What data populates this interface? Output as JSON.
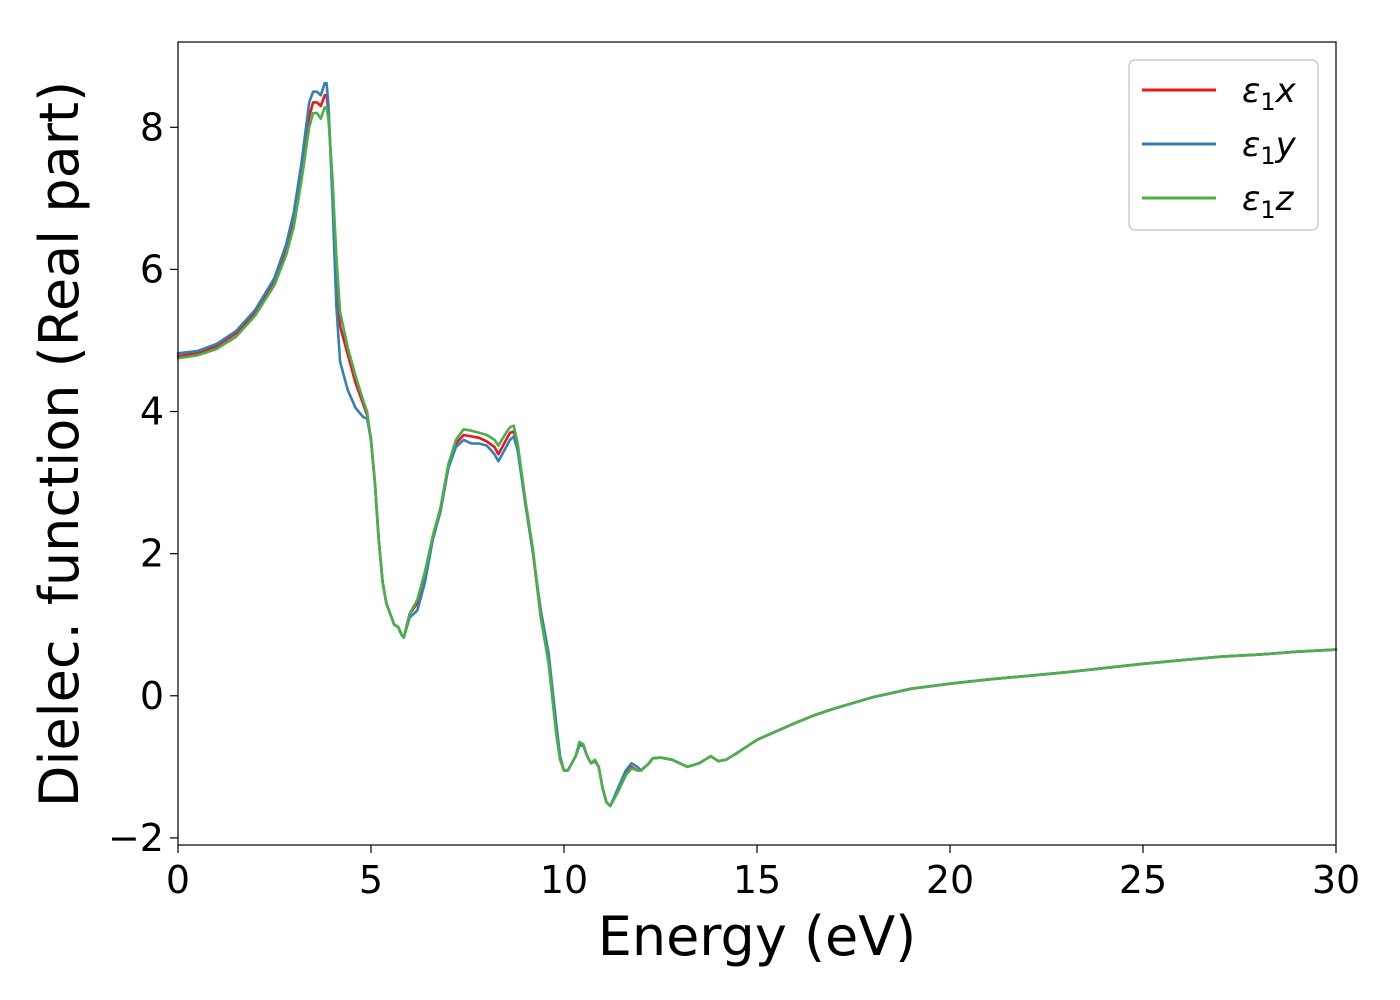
{
  "chart_data": {
    "type": "line",
    "title": "",
    "xlabel": "Energy (eV)",
    "ylabel": "Dielec. function (Real part)",
    "xlim": [
      0,
      30
    ],
    "ylim": [
      -2.1,
      9.2
    ],
    "xticks": [
      0,
      5,
      10,
      15,
      20,
      25,
      30
    ],
    "xtick_labels": [
      "0",
      "5",
      "10",
      "15",
      "20",
      "25",
      "30"
    ],
    "yticks": [
      -2,
      0,
      2,
      4,
      6,
      8
    ],
    "ytick_labels": [
      "−2",
      "0",
      "2",
      "4",
      "6",
      "8"
    ],
    "grid": false,
    "legend_position": "top-right",
    "series": [
      {
        "name": "ε1x",
        "legend_base": "ε",
        "legend_sub": "1",
        "legend_tail": "x",
        "color": "#e41a1c",
        "points": [
          [
            0,
            4.78
          ],
          [
            0.5,
            4.82
          ],
          [
            1.0,
            4.92
          ],
          [
            1.5,
            5.1
          ],
          [
            2.0,
            5.4
          ],
          [
            2.5,
            5.85
          ],
          [
            2.8,
            6.3
          ],
          [
            3.0,
            6.75
          ],
          [
            3.2,
            7.4
          ],
          [
            3.4,
            8.15
          ],
          [
            3.5,
            8.35
          ],
          [
            3.6,
            8.35
          ],
          [
            3.7,
            8.3
          ],
          [
            3.8,
            8.45
          ],
          [
            3.85,
            8.45
          ],
          [
            3.9,
            8.2
          ],
          [
            4.0,
            7.2
          ],
          [
            4.1,
            6.0
          ],
          [
            4.2,
            5.2
          ],
          [
            4.4,
            4.8
          ],
          [
            4.6,
            4.4
          ],
          [
            4.8,
            4.1
          ],
          [
            4.9,
            3.95
          ],
          [
            5.0,
            3.6
          ],
          [
            5.1,
            3.0
          ],
          [
            5.2,
            2.2
          ],
          [
            5.3,
            1.6
          ],
          [
            5.4,
            1.3
          ],
          [
            5.6,
            1.0
          ],
          [
            5.7,
            0.97
          ],
          [
            5.8,
            0.85
          ],
          [
            5.85,
            0.82
          ],
          [
            6.0,
            1.15
          ],
          [
            6.2,
            1.3
          ],
          [
            6.4,
            1.7
          ],
          [
            6.6,
            2.2
          ],
          [
            6.8,
            2.6
          ],
          [
            7.0,
            3.2
          ],
          [
            7.2,
            3.55
          ],
          [
            7.4,
            3.67
          ],
          [
            7.6,
            3.65
          ],
          [
            7.8,
            3.63
          ],
          [
            8.0,
            3.58
          ],
          [
            8.2,
            3.5
          ],
          [
            8.3,
            3.4
          ],
          [
            8.5,
            3.6
          ],
          [
            8.6,
            3.7
          ],
          [
            8.7,
            3.72
          ],
          [
            8.8,
            3.5
          ],
          [
            9.0,
            2.7
          ],
          [
            9.2,
            2.0
          ],
          [
            9.4,
            1.1
          ],
          [
            9.6,
            0.5
          ],
          [
            9.8,
            -0.5
          ],
          [
            9.9,
            -0.9
          ],
          [
            10.0,
            -1.05
          ],
          [
            10.1,
            -1.05
          ],
          [
            10.3,
            -0.85
          ],
          [
            10.4,
            -0.7
          ],
          [
            10.5,
            -0.7
          ],
          [
            10.6,
            -0.85
          ],
          [
            10.7,
            -0.95
          ],
          [
            10.8,
            -0.92
          ],
          [
            10.9,
            -1.0
          ],
          [
            11.0,
            -1.3
          ],
          [
            11.1,
            -1.5
          ],
          [
            11.2,
            -1.55
          ],
          [
            11.4,
            -1.35
          ],
          [
            11.6,
            -1.1
          ],
          [
            11.75,
            -1.0
          ],
          [
            11.9,
            -1.05
          ],
          [
            12.0,
            -1.05
          ],
          [
            12.2,
            -0.95
          ],
          [
            12.3,
            -0.88
          ],
          [
            12.5,
            -0.87
          ],
          [
            12.8,
            -0.9
          ],
          [
            13.0,
            -0.95
          ],
          [
            13.2,
            -1.0
          ],
          [
            13.5,
            -0.95
          ],
          [
            13.8,
            -0.85
          ],
          [
            14.0,
            -0.92
          ],
          [
            14.2,
            -0.9
          ],
          [
            14.5,
            -0.8
          ],
          [
            15.0,
            -0.62
          ],
          [
            15.5,
            -0.5
          ],
          [
            16.0,
            -0.38
          ],
          [
            16.5,
            -0.27
          ],
          [
            17.0,
            -0.18
          ],
          [
            17.5,
            -0.1
          ],
          [
            18.0,
            -0.02
          ],
          [
            19.0,
            0.1
          ],
          [
            20.0,
            0.17
          ],
          [
            21.0,
            0.23
          ],
          [
            22.0,
            0.28
          ],
          [
            23.0,
            0.33
          ],
          [
            24.0,
            0.39
          ],
          [
            25.0,
            0.45
          ],
          [
            26.0,
            0.5
          ],
          [
            27.0,
            0.55
          ],
          [
            28.0,
            0.58
          ],
          [
            29.0,
            0.62
          ],
          [
            30.0,
            0.65
          ]
        ]
      },
      {
        "name": "ε1y",
        "legend_base": "ε",
        "legend_sub": "1",
        "legend_tail": "y",
        "color": "#377eb8",
        "points": [
          [
            0,
            4.82
          ],
          [
            0.5,
            4.85
          ],
          [
            1.0,
            4.95
          ],
          [
            1.5,
            5.13
          ],
          [
            2.0,
            5.43
          ],
          [
            2.5,
            5.88
          ],
          [
            2.8,
            6.35
          ],
          [
            3.0,
            6.8
          ],
          [
            3.2,
            7.5
          ],
          [
            3.4,
            8.35
          ],
          [
            3.5,
            8.5
          ],
          [
            3.6,
            8.5
          ],
          [
            3.7,
            8.45
          ],
          [
            3.8,
            8.62
          ],
          [
            3.85,
            8.62
          ],
          [
            3.9,
            8.3
          ],
          [
            4.0,
            7.0
          ],
          [
            4.1,
            5.5
          ],
          [
            4.2,
            4.7
          ],
          [
            4.4,
            4.3
          ],
          [
            4.6,
            4.05
          ],
          [
            4.8,
            3.92
          ],
          [
            4.9,
            3.9
          ],
          [
            5.0,
            3.6
          ],
          [
            5.1,
            3.0
          ],
          [
            5.2,
            2.2
          ],
          [
            5.3,
            1.6
          ],
          [
            5.4,
            1.3
          ],
          [
            5.6,
            1.0
          ],
          [
            5.7,
            0.97
          ],
          [
            5.8,
            0.85
          ],
          [
            5.85,
            0.82
          ],
          [
            6.0,
            1.1
          ],
          [
            6.2,
            1.2
          ],
          [
            6.4,
            1.6
          ],
          [
            6.6,
            2.2
          ],
          [
            6.8,
            2.6
          ],
          [
            7.0,
            3.2
          ],
          [
            7.2,
            3.5
          ],
          [
            7.4,
            3.6
          ],
          [
            7.6,
            3.55
          ],
          [
            7.8,
            3.55
          ],
          [
            8.0,
            3.52
          ],
          [
            8.2,
            3.4
          ],
          [
            8.3,
            3.3
          ],
          [
            8.5,
            3.5
          ],
          [
            8.6,
            3.6
          ],
          [
            8.7,
            3.65
          ],
          [
            8.8,
            3.45
          ],
          [
            9.0,
            2.7
          ],
          [
            9.2,
            2.0
          ],
          [
            9.4,
            1.2
          ],
          [
            9.6,
            0.6
          ],
          [
            9.8,
            -0.4
          ],
          [
            9.9,
            -0.85
          ],
          [
            10.0,
            -1.05
          ],
          [
            10.1,
            -1.05
          ],
          [
            10.3,
            -0.85
          ],
          [
            10.4,
            -0.7
          ],
          [
            10.5,
            -0.7
          ],
          [
            10.6,
            -0.85
          ],
          [
            10.7,
            -0.95
          ],
          [
            10.8,
            -0.92
          ],
          [
            10.9,
            -1.0
          ],
          [
            11.0,
            -1.3
          ],
          [
            11.1,
            -1.5
          ],
          [
            11.2,
            -1.55
          ],
          [
            11.4,
            -1.3
          ],
          [
            11.6,
            -1.05
          ],
          [
            11.75,
            -0.95
          ],
          [
            11.9,
            -1.0
          ],
          [
            12.0,
            -1.05
          ],
          [
            12.2,
            -0.95
          ],
          [
            12.3,
            -0.88
          ],
          [
            12.5,
            -0.87
          ],
          [
            12.8,
            -0.9
          ],
          [
            13.0,
            -0.95
          ],
          [
            13.2,
            -1.0
          ],
          [
            13.5,
            -0.95
          ],
          [
            13.8,
            -0.85
          ],
          [
            14.0,
            -0.92
          ],
          [
            14.2,
            -0.9
          ],
          [
            14.5,
            -0.8
          ],
          [
            15.0,
            -0.62
          ],
          [
            15.5,
            -0.5
          ],
          [
            16.0,
            -0.38
          ],
          [
            16.5,
            -0.27
          ],
          [
            17.0,
            -0.18
          ],
          [
            17.5,
            -0.1
          ],
          [
            18.0,
            -0.02
          ],
          [
            19.0,
            0.1
          ],
          [
            20.0,
            0.17
          ],
          [
            21.0,
            0.23
          ],
          [
            22.0,
            0.28
          ],
          [
            23.0,
            0.33
          ],
          [
            24.0,
            0.39
          ],
          [
            25.0,
            0.45
          ],
          [
            26.0,
            0.5
          ],
          [
            27.0,
            0.55
          ],
          [
            28.0,
            0.58
          ],
          [
            29.0,
            0.62
          ],
          [
            30.0,
            0.65
          ]
        ]
      },
      {
        "name": "ε1z",
        "legend_base": "ε",
        "legend_sub": "1",
        "legend_tail": "z",
        "color": "#4daf4a",
        "points": [
          [
            0,
            4.75
          ],
          [
            0.5,
            4.79
          ],
          [
            1.0,
            4.88
          ],
          [
            1.5,
            5.05
          ],
          [
            2.0,
            5.35
          ],
          [
            2.5,
            5.78
          ],
          [
            2.8,
            6.2
          ],
          [
            3.0,
            6.6
          ],
          [
            3.2,
            7.25
          ],
          [
            3.4,
            8.0
          ],
          [
            3.5,
            8.2
          ],
          [
            3.6,
            8.2
          ],
          [
            3.7,
            8.12
          ],
          [
            3.8,
            8.28
          ],
          [
            3.85,
            8.28
          ],
          [
            3.9,
            8.1
          ],
          [
            4.0,
            7.3
          ],
          [
            4.1,
            6.2
          ],
          [
            4.2,
            5.4
          ],
          [
            4.4,
            4.9
          ],
          [
            4.6,
            4.5
          ],
          [
            4.8,
            4.15
          ],
          [
            4.9,
            4.0
          ],
          [
            5.0,
            3.6
          ],
          [
            5.1,
            3.0
          ],
          [
            5.2,
            2.2
          ],
          [
            5.3,
            1.6
          ],
          [
            5.4,
            1.3
          ],
          [
            5.6,
            1.0
          ],
          [
            5.7,
            0.97
          ],
          [
            5.8,
            0.85
          ],
          [
            5.85,
            0.82
          ],
          [
            6.0,
            1.15
          ],
          [
            6.2,
            1.35
          ],
          [
            6.4,
            1.75
          ],
          [
            6.6,
            2.25
          ],
          [
            6.8,
            2.65
          ],
          [
            7.0,
            3.25
          ],
          [
            7.2,
            3.6
          ],
          [
            7.4,
            3.75
          ],
          [
            7.6,
            3.73
          ],
          [
            7.8,
            3.7
          ],
          [
            8.0,
            3.67
          ],
          [
            8.2,
            3.6
          ],
          [
            8.3,
            3.52
          ],
          [
            8.5,
            3.7
          ],
          [
            8.6,
            3.78
          ],
          [
            8.7,
            3.8
          ],
          [
            8.8,
            3.55
          ],
          [
            9.0,
            2.75
          ],
          [
            9.2,
            2.05
          ],
          [
            9.4,
            1.1
          ],
          [
            9.6,
            0.45
          ],
          [
            9.8,
            -0.55
          ],
          [
            9.9,
            -0.9
          ],
          [
            10.0,
            -1.05
          ],
          [
            10.1,
            -1.05
          ],
          [
            10.3,
            -0.85
          ],
          [
            10.4,
            -0.65
          ],
          [
            10.5,
            -0.68
          ],
          [
            10.6,
            -0.85
          ],
          [
            10.7,
            -0.95
          ],
          [
            10.8,
            -0.9
          ],
          [
            10.9,
            -1.0
          ],
          [
            11.0,
            -1.3
          ],
          [
            11.1,
            -1.5
          ],
          [
            11.2,
            -1.55
          ],
          [
            11.4,
            -1.35
          ],
          [
            11.6,
            -1.12
          ],
          [
            11.75,
            -1.02
          ],
          [
            11.9,
            -1.05
          ],
          [
            12.0,
            -1.05
          ],
          [
            12.2,
            -0.95
          ],
          [
            12.3,
            -0.88
          ],
          [
            12.5,
            -0.87
          ],
          [
            12.8,
            -0.9
          ],
          [
            13.0,
            -0.95
          ],
          [
            13.2,
            -1.0
          ],
          [
            13.5,
            -0.95
          ],
          [
            13.8,
            -0.85
          ],
          [
            14.0,
            -0.92
          ],
          [
            14.2,
            -0.9
          ],
          [
            14.5,
            -0.8
          ],
          [
            15.0,
            -0.62
          ],
          [
            15.5,
            -0.5
          ],
          [
            16.0,
            -0.38
          ],
          [
            16.5,
            -0.27
          ],
          [
            17.0,
            -0.18
          ],
          [
            17.5,
            -0.1
          ],
          [
            18.0,
            -0.02
          ],
          [
            19.0,
            0.1
          ],
          [
            20.0,
            0.17
          ],
          [
            21.0,
            0.23
          ],
          [
            22.0,
            0.28
          ],
          [
            23.0,
            0.33
          ],
          [
            24.0,
            0.39
          ],
          [
            25.0,
            0.45
          ],
          [
            26.0,
            0.5
          ],
          [
            27.0,
            0.55
          ],
          [
            28.0,
            0.58
          ],
          [
            29.0,
            0.62
          ],
          [
            30.0,
            0.65
          ]
        ]
      }
    ]
  }
}
